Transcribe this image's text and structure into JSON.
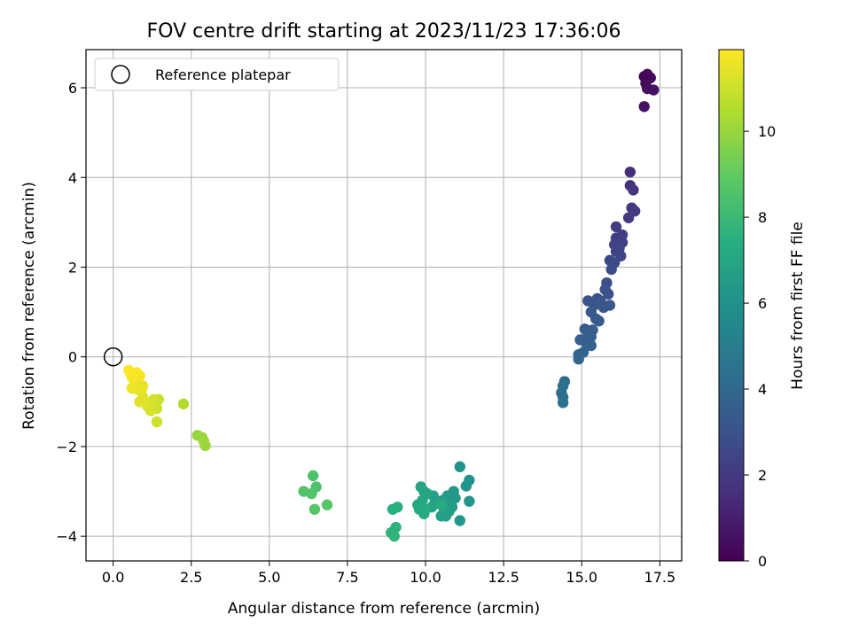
{
  "chart_data": {
    "type": "scatter",
    "title": "FOV centre drift starting at 2023/11/23 17:36:06",
    "xlabel": "Angular distance from reference (arcmin)",
    "ylabel": "Rotation from reference (arcmin)",
    "xlim": [
      -0.87,
      18.2
    ],
    "ylim": [
      -4.55,
      6.85
    ],
    "xticks": [
      0.0,
      2.5,
      5.0,
      7.5,
      10.0,
      12.5,
      15.0,
      17.5
    ],
    "xtick_labels": [
      "0.0",
      "2.5",
      "5.0",
      "7.5",
      "10.0",
      "12.5",
      "15.0",
      "17.5"
    ],
    "yticks": [
      -4,
      -2,
      0,
      2,
      4,
      6
    ],
    "ytick_labels": [
      "−4",
      "−2",
      "0",
      "2",
      "4",
      "6"
    ],
    "grid": true,
    "legend": {
      "position": "top-left",
      "entries": [
        "Reference platepar"
      ]
    },
    "reference_point": {
      "x": 0.0,
      "y": 0.0
    },
    "colorbar": {
      "label": "Hours from first FF file",
      "colormap": "viridis",
      "range": [
        0,
        11.9
      ],
      "ticks": [
        0,
        2,
        4,
        6,
        8,
        10
      ],
      "tick_labels": [
        "0",
        "2",
        "4",
        "6",
        "8",
        "10"
      ]
    },
    "points": [
      {
        "x": 17.0,
        "y": 6.25,
        "c": 0.1
      },
      {
        "x": 17.2,
        "y": 6.22,
        "c": 0.2
      },
      {
        "x": 17.05,
        "y": 6.1,
        "c": 0.3
      },
      {
        "x": 17.1,
        "y": 5.98,
        "c": 0.4
      },
      {
        "x": 17.3,
        "y": 5.95,
        "c": 0.5
      },
      {
        "x": 17.0,
        "y": 5.58,
        "c": 0.6
      },
      {
        "x": 17.1,
        "y": 6.3,
        "c": 0.2
      },
      {
        "x": 16.55,
        "y": 4.12,
        "c": 1.6
      },
      {
        "x": 16.55,
        "y": 3.82,
        "c": 1.7
      },
      {
        "x": 16.65,
        "y": 3.72,
        "c": 1.8
      },
      {
        "x": 16.6,
        "y": 3.32,
        "c": 1.9
      },
      {
        "x": 16.7,
        "y": 3.25,
        "c": 2.0
      },
      {
        "x": 16.5,
        "y": 3.1,
        "c": 2.0
      },
      {
        "x": 16.1,
        "y": 2.9,
        "c": 2.1
      },
      {
        "x": 16.3,
        "y": 2.72,
        "c": 2.2
      },
      {
        "x": 16.1,
        "y": 2.65,
        "c": 2.2
      },
      {
        "x": 16.3,
        "y": 2.55,
        "c": 2.3
      },
      {
        "x": 16.05,
        "y": 2.5,
        "c": 2.3
      },
      {
        "x": 16.2,
        "y": 2.42,
        "c": 2.4
      },
      {
        "x": 16.1,
        "y": 2.35,
        "c": 2.4
      },
      {
        "x": 16.25,
        "y": 2.25,
        "c": 2.5
      },
      {
        "x": 15.9,
        "y": 2.15,
        "c": 2.5
      },
      {
        "x": 16.05,
        "y": 2.1,
        "c": 2.6
      },
      {
        "x": 15.95,
        "y": 1.95,
        "c": 2.7
      },
      {
        "x": 15.8,
        "y": 1.65,
        "c": 2.8
      },
      {
        "x": 15.75,
        "y": 1.5,
        "c": 2.9
      },
      {
        "x": 15.85,
        "y": 1.4,
        "c": 2.9
      },
      {
        "x": 15.5,
        "y": 1.3,
        "c": 3.0
      },
      {
        "x": 15.2,
        "y": 1.25,
        "c": 3.0
      },
      {
        "x": 15.6,
        "y": 1.25,
        "c": 3.1
      },
      {
        "x": 15.4,
        "y": 1.15,
        "c": 3.1
      },
      {
        "x": 15.9,
        "y": 1.15,
        "c": 3.2
      },
      {
        "x": 15.7,
        "y": 1.1,
        "c": 3.2
      },
      {
        "x": 15.3,
        "y": 1.0,
        "c": 3.3
      },
      {
        "x": 15.45,
        "y": 0.85,
        "c": 3.3
      },
      {
        "x": 15.55,
        "y": 0.8,
        "c": 3.4
      },
      {
        "x": 15.1,
        "y": 0.62,
        "c": 3.4
      },
      {
        "x": 15.35,
        "y": 0.6,
        "c": 3.5
      },
      {
        "x": 15.2,
        "y": 0.5,
        "c": 3.5
      },
      {
        "x": 15.3,
        "y": 0.45,
        "c": 3.6
      },
      {
        "x": 14.95,
        "y": 0.38,
        "c": 3.6
      },
      {
        "x": 15.15,
        "y": 0.3,
        "c": 3.7
      },
      {
        "x": 15.3,
        "y": 0.25,
        "c": 3.7
      },
      {
        "x": 15.05,
        "y": 0.1,
        "c": 3.8
      },
      {
        "x": 14.9,
        "y": 0.05,
        "c": 3.8
      },
      {
        "x": 14.9,
        "y": -0.05,
        "c": 3.9
      },
      {
        "x": 14.45,
        "y": -0.55,
        "c": 4.2
      },
      {
        "x": 14.4,
        "y": -0.65,
        "c": 4.3
      },
      {
        "x": 14.35,
        "y": -0.8,
        "c": 4.3
      },
      {
        "x": 14.4,
        "y": -0.9,
        "c": 4.4
      },
      {
        "x": 14.4,
        "y": -1.02,
        "c": 4.4
      },
      {
        "x": 11.1,
        "y": -2.45,
        "c": 6.0
      },
      {
        "x": 11.4,
        "y": -2.75,
        "c": 6.1
      },
      {
        "x": 11.3,
        "y": -2.88,
        "c": 6.1
      },
      {
        "x": 11.4,
        "y": -3.22,
        "c": 6.2
      },
      {
        "x": 11.1,
        "y": -3.65,
        "c": 6.2
      },
      {
        "x": 10.9,
        "y": -3.0,
        "c": 6.3
      },
      {
        "x": 10.95,
        "y": -3.15,
        "c": 6.3
      },
      {
        "x": 10.7,
        "y": -3.1,
        "c": 6.4
      },
      {
        "x": 10.8,
        "y": -3.25,
        "c": 6.4
      },
      {
        "x": 10.55,
        "y": -3.2,
        "c": 6.5
      },
      {
        "x": 10.85,
        "y": -3.35,
        "c": 6.5
      },
      {
        "x": 10.6,
        "y": -3.4,
        "c": 6.6
      },
      {
        "x": 10.75,
        "y": -3.45,
        "c": 6.6
      },
      {
        "x": 10.5,
        "y": -3.55,
        "c": 6.7
      },
      {
        "x": 10.65,
        "y": -3.55,
        "c": 6.7
      },
      {
        "x": 10.25,
        "y": -3.1,
        "c": 6.8
      },
      {
        "x": 10.3,
        "y": -3.25,
        "c": 6.8
      },
      {
        "x": 10.2,
        "y": -3.35,
        "c": 6.9
      },
      {
        "x": 10.05,
        "y": -3.05,
        "c": 6.9
      },
      {
        "x": 9.95,
        "y": -3.0,
        "c": 7.0
      },
      {
        "x": 9.85,
        "y": -2.9,
        "c": 7.0
      },
      {
        "x": 9.9,
        "y": -3.2,
        "c": 7.1
      },
      {
        "x": 9.75,
        "y": -3.3,
        "c": 7.1
      },
      {
        "x": 10.0,
        "y": -3.4,
        "c": 7.2
      },
      {
        "x": 9.95,
        "y": -3.5,
        "c": 7.2
      },
      {
        "x": 9.8,
        "y": -3.4,
        "c": 7.3
      },
      {
        "x": 10.5,
        "y": -3.3,
        "c": 7.3
      },
      {
        "x": 9.1,
        "y": -3.35,
        "c": 7.5
      },
      {
        "x": 8.95,
        "y": -3.4,
        "c": 7.5
      },
      {
        "x": 9.05,
        "y": -3.8,
        "c": 7.6
      },
      {
        "x": 8.9,
        "y": -3.92,
        "c": 7.6
      },
      {
        "x": 9.0,
        "y": -4.0,
        "c": 7.7
      },
      {
        "x": 6.4,
        "y": -2.65,
        "c": 8.5
      },
      {
        "x": 6.5,
        "y": -2.9,
        "c": 8.5
      },
      {
        "x": 6.1,
        "y": -3.0,
        "c": 8.6
      },
      {
        "x": 6.35,
        "y": -3.05,
        "c": 8.6
      },
      {
        "x": 6.45,
        "y": -3.4,
        "c": 8.7
      },
      {
        "x": 6.85,
        "y": -3.3,
        "c": 8.7
      },
      {
        "x": 2.7,
        "y": -1.75,
        "c": 10.0
      },
      {
        "x": 2.85,
        "y": -1.8,
        "c": 10.0
      },
      {
        "x": 2.9,
        "y": -1.88,
        "c": 10.1
      },
      {
        "x": 2.95,
        "y": -1.98,
        "c": 10.1
      },
      {
        "x": 2.25,
        "y": -1.05,
        "c": 10.5
      },
      {
        "x": 1.45,
        "y": -0.95,
        "c": 10.9
      },
      {
        "x": 1.35,
        "y": -1.0,
        "c": 11.0
      },
      {
        "x": 1.4,
        "y": -1.15,
        "c": 11.0
      },
      {
        "x": 1.25,
        "y": -1.1,
        "c": 11.1
      },
      {
        "x": 1.3,
        "y": -0.95,
        "c": 11.1
      },
      {
        "x": 1.4,
        "y": -1.45,
        "c": 11.0
      },
      {
        "x": 1.1,
        "y": -1.1,
        "c": 11.2
      },
      {
        "x": 1.2,
        "y": -1.2,
        "c": 11.2
      },
      {
        "x": 0.95,
        "y": -0.9,
        "c": 11.3
      },
      {
        "x": 1.0,
        "y": -1.0,
        "c": 11.3
      },
      {
        "x": 0.85,
        "y": -1.0,
        "c": 11.4
      },
      {
        "x": 0.9,
        "y": -0.75,
        "c": 11.4
      },
      {
        "x": 0.75,
        "y": -0.72,
        "c": 11.5
      },
      {
        "x": 0.65,
        "y": -0.65,
        "c": 11.5
      },
      {
        "x": 0.8,
        "y": -0.55,
        "c": 11.6
      },
      {
        "x": 0.7,
        "y": -0.5,
        "c": 11.6
      },
      {
        "x": 0.6,
        "y": -0.45,
        "c": 11.7
      },
      {
        "x": 0.85,
        "y": -0.42,
        "c": 11.7
      },
      {
        "x": 0.55,
        "y": -0.35,
        "c": 11.8
      },
      {
        "x": 0.75,
        "y": -0.35,
        "c": 11.8
      },
      {
        "x": 0.5,
        "y": -0.3,
        "c": 11.9
      },
      {
        "x": 0.95,
        "y": -0.65,
        "c": 11.5
      },
      {
        "x": 0.6,
        "y": -0.7,
        "c": 11.6
      }
    ]
  }
}
